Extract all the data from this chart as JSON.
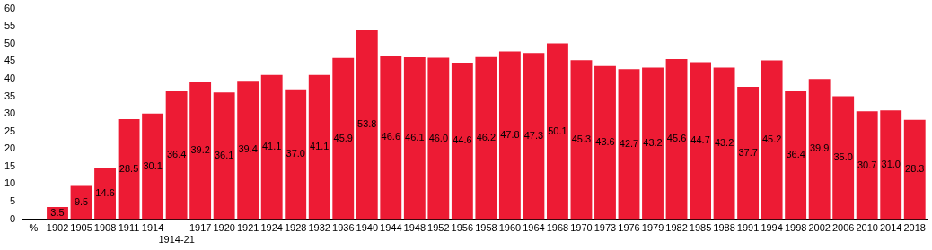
{
  "chart_data": {
    "type": "bar",
    "categories": [
      "%",
      "1902",
      "1905",
      "1908",
      "1911",
      "1914",
      "1914-21",
      "1917",
      "1920",
      "1921",
      "1924",
      "1928",
      "1932",
      "1936",
      "1940",
      "1944",
      "1948",
      "1952",
      "1956",
      "1958",
      "1960",
      "1964",
      "1968",
      "1970",
      "1973",
      "1976",
      "1979",
      "1982",
      "1985",
      "1988",
      "1991",
      "1994",
      "1998",
      "2002",
      "2006",
      "2010",
      "2014",
      "2018"
    ],
    "values": [
      null,
      3.5,
      9.5,
      14.6,
      28.5,
      30.1,
      36.4,
      39.2,
      36.1,
      39.4,
      41.1,
      37.0,
      41.1,
      45.9,
      53.8,
      46.6,
      46.1,
      46.0,
      44.6,
      46.2,
      47.8,
      47.3,
      50.1,
      45.3,
      43.6,
      42.7,
      43.2,
      45.6,
      44.7,
      43.2,
      37.7,
      45.2,
      36.4,
      39.9,
      35.0,
      30.7,
      31.0,
      28.3
    ],
    "color": "#ed1b34",
    "ylim": [
      0,
      60
    ],
    "yticks": [
      0,
      5,
      10,
      15,
      20,
      25,
      30,
      35,
      40,
      45,
      50,
      55,
      60
    ],
    "value_labels": [
      null,
      "3.5",
      "9.5",
      "14.6",
      "28.5",
      "30.1",
      "36.4",
      "39.2",
      "36.1",
      "39.4",
      "41.1",
      "37.0",
      "41.1",
      "45.9",
      "53.8",
      "46.6",
      "46.1",
      "46.0",
      "44.6",
      "46.2",
      "47.8",
      "47.3",
      "50.1",
      "45.3",
      "43.6",
      "42.7",
      "43.2",
      "45.6",
      "44.7",
      "43.2",
      "37.7",
      "45.2",
      "36.4",
      "39.9",
      "35.0",
      "30.7",
      "31.0",
      "28.3"
    ]
  }
}
